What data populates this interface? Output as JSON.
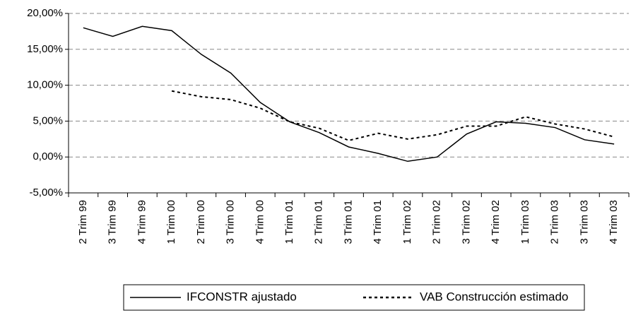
{
  "chart_data": {
    "type": "line",
    "categories": [
      "2 Trim 99",
      "3 Trim 99",
      "4 Trim 99",
      "1 Trim 00",
      "2 Trim 00",
      "3 Trim 00",
      "4 Trim 00",
      "1 Trim 01",
      "2 Trim 01",
      "3 Trim 01",
      "4 Trim 01",
      "1 Trim 02",
      "2 Trim 02",
      "3 Trim 02",
      "4 Trim 02",
      "1 Trim 03",
      "2 Trim 03",
      "3 Trim 03",
      "4 Trim 03"
    ],
    "series": [
      {
        "name": "IFCONSTR ajustado",
        "color": "#000000",
        "dash": "solid",
        "values": [
          18.0,
          16.8,
          18.2,
          17.6,
          14.3,
          11.7,
          7.6,
          4.9,
          3.4,
          1.4,
          0.5,
          -0.6,
          0.0,
          3.2,
          4.9,
          4.7,
          4.1,
          2.4,
          1.8
        ]
      },
      {
        "name": "VAB Construcción estimado",
        "color": "#000000",
        "dash": "dotted",
        "values": [
          null,
          null,
          null,
          9.2,
          8.4,
          8.0,
          6.8,
          4.9,
          4.0,
          2.3,
          3.3,
          2.5,
          3.1,
          4.3,
          4.3,
          5.6,
          4.6,
          3.9,
          2.8
        ]
      }
    ],
    "ylim": [
      -5,
      20
    ],
    "yticks": [
      {
        "value": -5,
        "label": "-5,00%"
      },
      {
        "value": 0,
        "label": "0,00%"
      },
      {
        "value": 5,
        "label": "5,00%"
      },
      {
        "value": 10,
        "label": "10,00%"
      },
      {
        "value": 15,
        "label": "15,00%"
      },
      {
        "value": 20,
        "label": "20,00%"
      }
    ],
    "grid": true,
    "legend": "bottom"
  }
}
